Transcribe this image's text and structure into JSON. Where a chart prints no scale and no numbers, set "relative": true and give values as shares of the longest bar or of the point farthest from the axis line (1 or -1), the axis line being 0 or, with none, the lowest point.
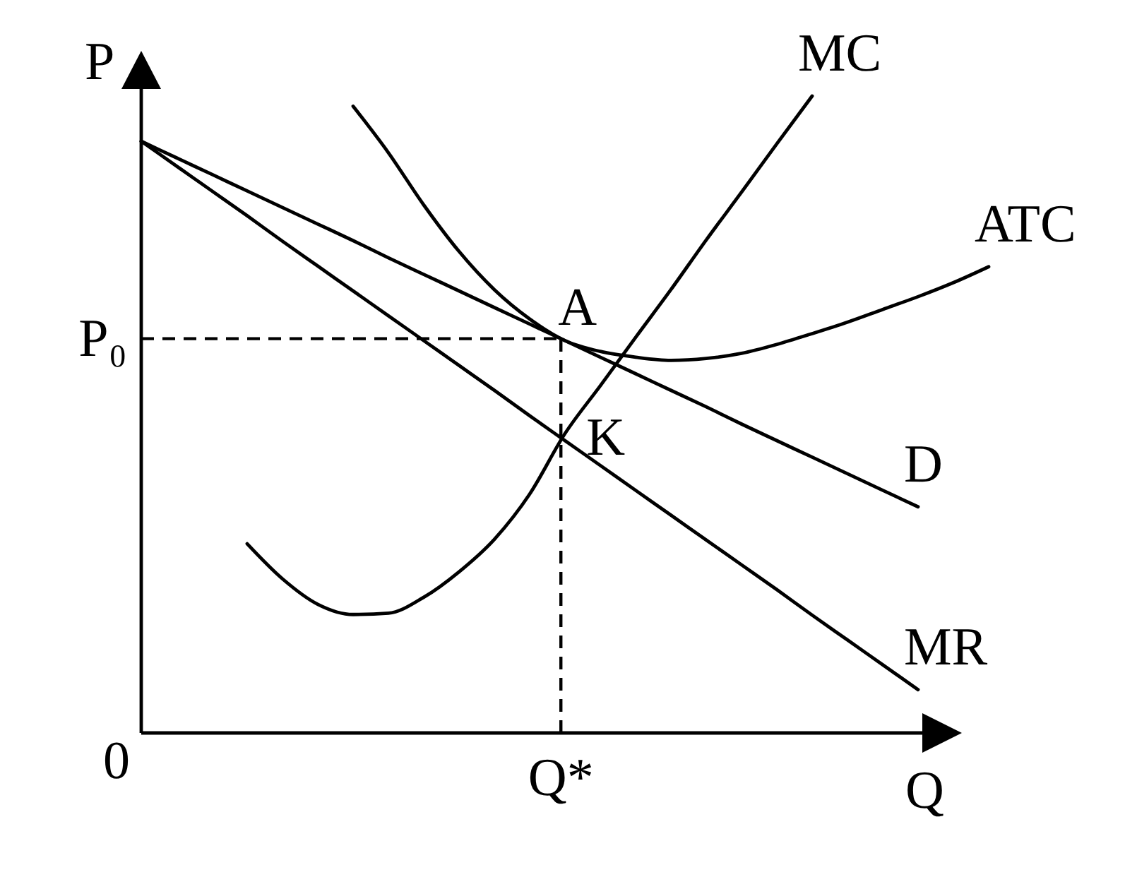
{
  "chart_data": {
    "type": "line",
    "relative": true,
    "xlabel": "Q",
    "ylabel": "P",
    "categories": [
      null,
      null,
      null,
      null,
      null,
      null,
      null,
      null,
      null,
      null,
      null,
      null,
      null,
      null,
      null,
      null,
      null,
      null,
      null,
      null,
      null,
      null,
      null,
      null,
      null
    ],
    "series": [
      {
        "name": "MC",
        "color": "#000000",
        "values": [
          null,
          null,
          null,
          0.297,
          0.242,
          0.202,
          0.186,
          0.188,
          0.213,
          0.253,
          0.304,
          0.375,
          0.47,
          0.545,
          0.621,
          0.696,
          0.774,
          0.849,
          0.925,
          1,
          null,
          null,
          null,
          null,
          null
        ]
      },
      {
        "name": "ATC",
        "color": "#000000",
        "values": [
          null,
          null,
          null,
          null,
          null,
          null,
          0.984,
          0.911,
          0.829,
          0.756,
          0.696,
          0.65,
          0.616,
          0.599,
          0.59,
          0.585,
          0.588,
          0.596,
          0.61,
          0.627,
          0.645,
          0.665,
          0.685,
          0.707,
          0.732
        ]
      },
      {
        "name": "D",
        "color": "#000000",
        "values": [
          0.929,
          0.903,
          0.877,
          0.851,
          0.825,
          0.799,
          0.773,
          0.746,
          0.72,
          0.694,
          0.668,
          0.642,
          0.616,
          0.59,
          0.564,
          0.538,
          0.512,
          0.485,
          0.459,
          0.433,
          0.407,
          0.381,
          0.355,
          null,
          null
        ]
      },
      {
        "name": "MR",
        "color": "#000000",
        "values": [
          0.929,
          0.89,
          0.851,
          0.812,
          0.772,
          0.733,
          0.694,
          0.655,
          0.616,
          0.577,
          0.538,
          0.498,
          0.459,
          0.42,
          0.381,
          0.342,
          0.303,
          0.264,
          0.225,
          0.185,
          0.146,
          0.107,
          0.068,
          null,
          null
        ]
      }
    ],
    "ref_lines": [
      {
        "axis": "y",
        "value": 0.619,
        "label": "P₀",
        "line_style": "dashed"
      }
    ],
    "annotations": [
      "0",
      "A",
      "K",
      "Q*"
    ],
    "line_style": "solid",
    "marker": "none"
  }
}
